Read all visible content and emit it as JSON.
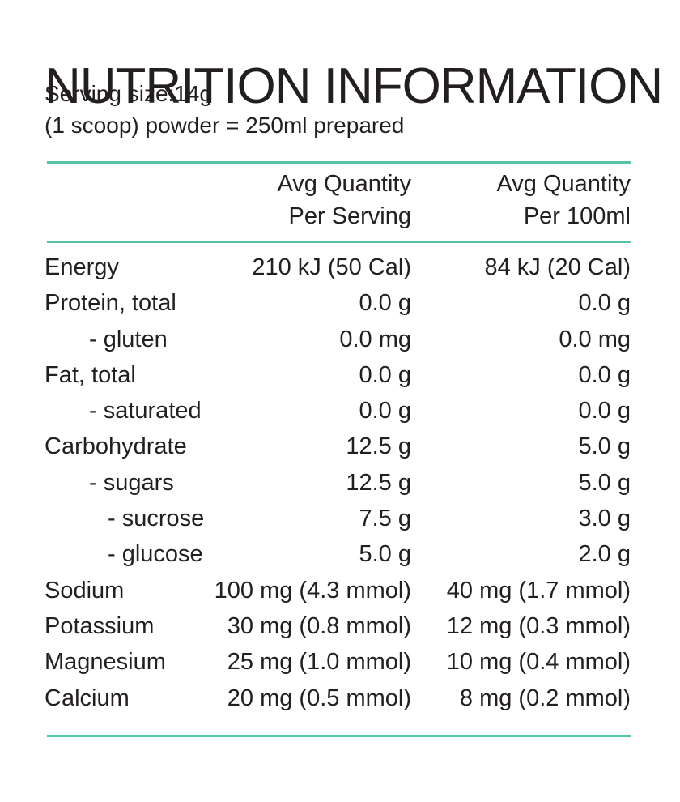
{
  "title": "NUTRITION INFORMATION",
  "serving_size": "Serving size:14g",
  "serving_note": "(1 scoop) powder = 250ml prepared",
  "accent_color": "#56c2a8",
  "columns": {
    "per_serving_line1": "Avg Quantity",
    "per_serving_line2": "Per Serving",
    "per_100ml_line1": "Avg Quantity",
    "per_100ml_line2": "Per 100ml"
  },
  "rows": [
    {
      "label": "Energy",
      "per_serving": "210 kJ (50 Cal)",
      "per_100ml": "84 kJ (20 Cal)"
    },
    {
      "label": "Protein, total",
      "per_serving": "0.0 g",
      "per_100ml": "0.0 g"
    },
    {
      "label": "- gluten",
      "per_serving": "0.0 mg",
      "per_100ml": "0.0 mg"
    },
    {
      "label": "Fat, total",
      "per_serving": "0.0 g",
      "per_100ml": "0.0 g"
    },
    {
      "label": "- saturated",
      "per_serving": "0.0 g",
      "per_100ml": "0.0 g"
    },
    {
      "label": "Carbohydrate",
      "per_serving": "12.5 g",
      "per_100ml": "5.0 g"
    },
    {
      "label": "- sugars",
      "per_serving": "12.5 g",
      "per_100ml": "5.0 g"
    },
    {
      "label": "- sucrose",
      "per_serving": "7.5 g",
      "per_100ml": "3.0 g"
    },
    {
      "label": "- glucose",
      "per_serving": "5.0 g",
      "per_100ml": "2.0 g"
    },
    {
      "label": "Sodium",
      "per_serving": "100 mg (4.3 mmol)",
      "per_100ml": "40 mg (1.7 mmol)"
    },
    {
      "label": "Potassium",
      "per_serving": "30 mg (0.8 mmol)",
      "per_100ml": "12 mg (0.3 mmol)"
    },
    {
      "label": "Magnesium",
      "per_serving": "25 mg (1.0 mmol)",
      "per_100ml": "10 mg (0.4 mmol)"
    },
    {
      "label": "Calcium",
      "per_serving": "20 mg (0.5 mmol)",
      "per_100ml": "8 mg (0.2 mmol)"
    }
  ]
}
